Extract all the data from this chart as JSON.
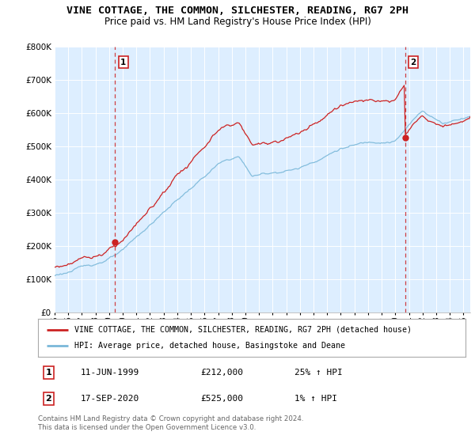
{
  "title": "VINE COTTAGE, THE COMMON, SILCHESTER, READING, RG7 2PH",
  "subtitle": "Price paid vs. HM Land Registry's House Price Index (HPI)",
  "legend_line1": "VINE COTTAGE, THE COMMON, SILCHESTER, READING, RG7 2PH (detached house)",
  "legend_line2": "HPI: Average price, detached house, Basingstoke and Deane",
  "transaction1_date": "11-JUN-1999",
  "transaction1_price": "£212,000",
  "transaction1_hpi": "25% ↑ HPI",
  "transaction2_date": "17-SEP-2020",
  "transaction2_price": "£525,000",
  "transaction2_hpi": "1% ↑ HPI",
  "footer": "Contains HM Land Registry data © Crown copyright and database right 2024.\nThis data is licensed under the Open Government Licence v3.0.",
  "ylim": [
    0,
    800000
  ],
  "xlim_start": 1995.0,
  "xlim_end": 2025.5,
  "hpi_color": "#7ab8d9",
  "price_color": "#cc2222",
  "dashed_color": "#cc2222",
  "background_color": "#ffffff",
  "plot_bg_color": "#ddeeff",
  "grid_color": "#ffffff",
  "transaction1_x": 1999.44,
  "transaction1_y": 212000,
  "transaction2_x": 2020.72,
  "transaction2_y": 525000
}
